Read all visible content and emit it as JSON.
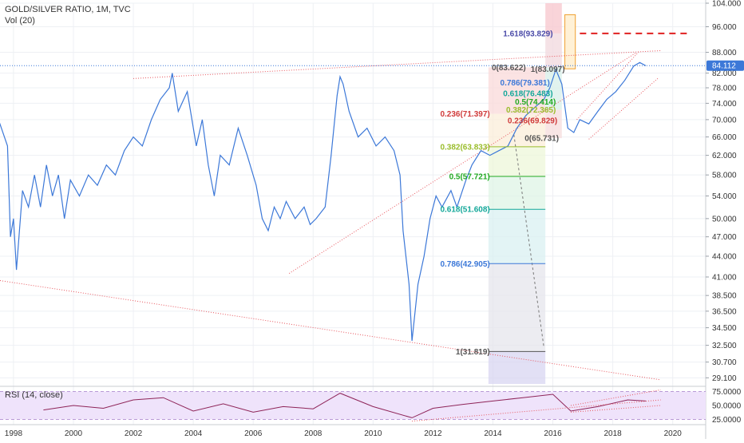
{
  "header": {
    "symbol": "GOLD/SILVER RATIO, 1M, TVC",
    "volume": "Vol (20)"
  },
  "rsi_panel": {
    "label": "RSI (14, close)",
    "ticks": [
      "75.0000",
      "50.0000",
      "25.0000"
    ]
  },
  "colors": {
    "price_line": "#3c78d8",
    "rsi_line": "#8e2458",
    "rsi_band": "#efe3fb",
    "trend_line": "#e8575f",
    "current_price_badge": "#3c78d8",
    "grid": "#eef0f4"
  },
  "chart_data": {
    "type": "line",
    "title": "GOLD/SILVER RATIO, 1M, TVC",
    "x_ticks": [
      "1998",
      "2000",
      "2002",
      "2004",
      "2006",
      "2008",
      "2010",
      "2012",
      "2014",
      "2016",
      "2018",
      "2020"
    ],
    "x_range": [
      1997.55,
      2021.1
    ],
    "y_ticks": [
      "104.000",
      "96.000",
      "88.000",
      "82.000",
      "78.000",
      "74.000",
      "70.000",
      "66.000",
      "62.000",
      "58.000",
      "54.000",
      "50.000",
      "47.000",
      "44.000",
      "41.000",
      "38.500",
      "36.500",
      "34.500",
      "32.500",
      "30.700",
      "29.100"
    ],
    "y_range": [
      28.5,
      104.0
    ],
    "y_scale": "log",
    "current_price": "84.112",
    "grid": true,
    "series": [
      {
        "points": [
          [
            1997.5,
            70.0
          ],
          [
            1997.8,
            64.0
          ],
          [
            1997.9,
            47.0
          ],
          [
            1998.0,
            50.0
          ],
          [
            1998.1,
            42.0
          ],
          [
            1998.3,
            55.0
          ],
          [
            1998.5,
            52.0
          ],
          [
            1998.7,
            58.0
          ],
          [
            1998.9,
            52.0
          ],
          [
            1999.1,
            60.0
          ],
          [
            1999.3,
            54.0
          ],
          [
            1999.5,
            58.0
          ],
          [
            1999.7,
            50.0
          ],
          [
            1999.9,
            57.0
          ],
          [
            2000.2,
            54.0
          ],
          [
            2000.5,
            58.0
          ],
          [
            2000.8,
            56.0
          ],
          [
            2001.1,
            60.0
          ],
          [
            2001.4,
            58.0
          ],
          [
            2001.7,
            63.0
          ],
          [
            2002.0,
            66.0
          ],
          [
            2002.3,
            64.0
          ],
          [
            2002.6,
            70.0
          ],
          [
            2002.9,
            75.0
          ],
          [
            2003.2,
            78.0
          ],
          [
            2003.3,
            82.0
          ],
          [
            2003.5,
            72.0
          ],
          [
            2003.8,
            77.0
          ],
          [
            2004.1,
            64.0
          ],
          [
            2004.3,
            70.0
          ],
          [
            2004.5,
            60.0
          ],
          [
            2004.7,
            54.0
          ],
          [
            2004.9,
            62.0
          ],
          [
            2005.2,
            60.0
          ],
          [
            2005.5,
            68.0
          ],
          [
            2005.8,
            62.0
          ],
          [
            2006.1,
            56.0
          ],
          [
            2006.3,
            50.0
          ],
          [
            2006.5,
            48.0
          ],
          [
            2006.7,
            52.0
          ],
          [
            2006.9,
            50.0
          ],
          [
            2007.1,
            53.0
          ],
          [
            2007.4,
            50.0
          ],
          [
            2007.7,
            52.0
          ],
          [
            2007.9,
            49.0
          ],
          [
            2008.1,
            50.0
          ],
          [
            2008.4,
            52.0
          ],
          [
            2008.6,
            62.0
          ],
          [
            2008.8,
            76.0
          ],
          [
            2008.9,
            81.0
          ],
          [
            2009.0,
            79.0
          ],
          [
            2009.2,
            72.0
          ],
          [
            2009.5,
            66.0
          ],
          [
            2009.8,
            68.0
          ],
          [
            2010.1,
            64.0
          ],
          [
            2010.4,
            66.0
          ],
          [
            2010.7,
            63.0
          ],
          [
            2010.9,
            58.0
          ],
          [
            2011.0,
            48.0
          ],
          [
            2011.2,
            40.0
          ],
          [
            2011.3,
            33.0
          ],
          [
            2011.5,
            40.0
          ],
          [
            2011.7,
            44.0
          ],
          [
            2011.9,
            50.0
          ],
          [
            2012.1,
            54.0
          ],
          [
            2012.3,
            52.0
          ],
          [
            2012.6,
            55.0
          ],
          [
            2012.8,
            52.0
          ],
          [
            2013.1,
            57.0
          ],
          [
            2013.3,
            60.0
          ],
          [
            2013.6,
            63.0
          ],
          [
            2013.9,
            62.0
          ],
          [
            2014.2,
            63.0
          ],
          [
            2014.5,
            64.0
          ],
          [
            2014.8,
            68.0
          ],
          [
            2015.1,
            71.0
          ],
          [
            2015.4,
            73.0
          ],
          [
            2015.7,
            75.0
          ],
          [
            2015.9,
            78.0
          ],
          [
            2016.1,
            83.0
          ],
          [
            2016.3,
            79.0
          ],
          [
            2016.5,
            68.0
          ],
          [
            2016.7,
            67.0
          ],
          [
            2016.9,
            70.0
          ],
          [
            2017.2,
            69.0
          ],
          [
            2017.5,
            72.0
          ],
          [
            2017.8,
            75.0
          ],
          [
            2018.1,
            77.0
          ],
          [
            2018.4,
            80.0
          ],
          [
            2018.7,
            84.0
          ],
          [
            2018.9,
            85.0
          ],
          [
            2019.1,
            84.1
          ]
        ]
      }
    ],
    "rsi": {
      "points": [
        [
          1999.0,
          42
        ],
        [
          2000.0,
          50
        ],
        [
          2001.0,
          45
        ],
        [
          2002.0,
          60
        ],
        [
          2003.0,
          64
        ],
        [
          2004.0,
          40
        ],
        [
          2005.0,
          53
        ],
        [
          2006.0,
          38
        ],
        [
          2007.0,
          48
        ],
        [
          2008.0,
          44
        ],
        [
          2008.9,
          72
        ],
        [
          2010.0,
          48
        ],
        [
          2011.3,
          28
        ],
        [
          2012.0,
          45
        ],
        [
          2013.0,
          52
        ],
        [
          2014.0,
          58
        ],
        [
          2015.0,
          64
        ],
        [
          2016.0,
          70
        ],
        [
          2016.6,
          40
        ],
        [
          2017.5,
          48
        ],
        [
          2018.5,
          60
        ],
        [
          2019.1,
          58
        ]
      ]
    },
    "annotations": [
      {
        "text": "1.618(93.829)",
        "value": 93.829,
        "color": "#4a4aa8"
      },
      {
        "text": "0(83.622)",
        "value": 83.622,
        "color": "#555555"
      },
      {
        "text": "1(83.097)",
        "value": 83.097,
        "color": "#555555"
      },
      {
        "text": "0.786(79.381)",
        "value": 79.381,
        "color": "#3c78d8"
      },
      {
        "text": "0.618(76.483)",
        "value": 76.483,
        "color": "#14a89a"
      },
      {
        "text": "0.5(74.414)",
        "value": 74.414,
        "color": "#22aa22"
      },
      {
        "text": "0.382(72.365)",
        "value": 72.365,
        "color": "#9abd2c"
      },
      {
        "text": "0.236(71.397)",
        "value": 71.397,
        "color": "#d03b3b"
      },
      {
        "text": "0.236(69.829)",
        "value": 69.829,
        "color": "#d03b3b"
      },
      {
        "text": "0(65.731)",
        "value": 65.731,
        "color": "#555555"
      },
      {
        "text": "0.382(63.833)",
        "value": 63.833,
        "color": "#9abd2c"
      },
      {
        "text": "0.5(57.721)",
        "value": 57.721,
        "color": "#22aa22"
      },
      {
        "text": "0.618(51.608)",
        "value": 51.608,
        "color": "#14a89a"
      },
      {
        "text": "0.786(42.905)",
        "value": 42.905,
        "color": "#3c78d8"
      },
      {
        "text": "1(31.819)",
        "value": 31.819,
        "color": "#555555"
      }
    ]
  }
}
